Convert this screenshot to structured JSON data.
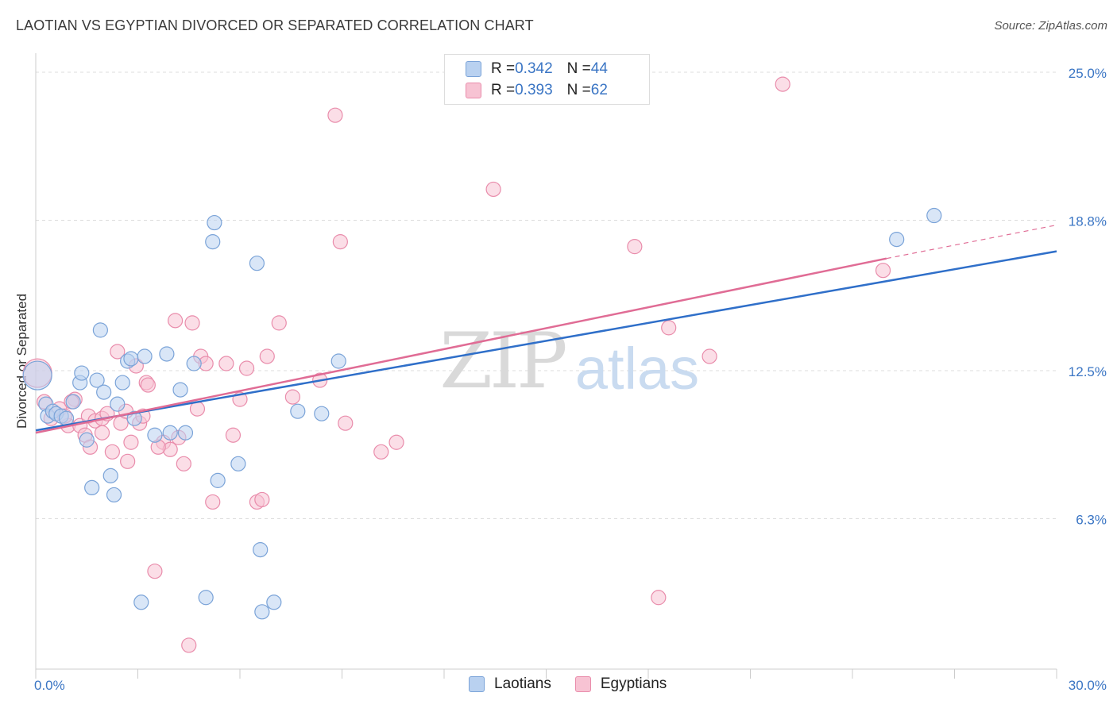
{
  "title": "LAOTIAN VS EGYPTIAN DIVORCED OR SEPARATED CORRELATION CHART",
  "source": "Source: ZipAtlas.com",
  "watermark": {
    "zip": "ZIP",
    "atlas": "atlas"
  },
  "legend": {
    "rows": [
      {
        "r_label": "R = ",
        "r_value": "0.342",
        "n_label": "N = ",
        "n_value": "44"
      },
      {
        "r_label": "R = ",
        "r_value": "0.393",
        "n_label": "N = ",
        "n_value": "62"
      }
    ]
  },
  "bottom_legend": [
    "Laotians",
    "Egyptians"
  ],
  "colors": {
    "laotian_fill": "#b9d1f0",
    "laotian_stroke": "#7aa3d8",
    "laotian_line": "#2f6fc9",
    "egyptian_fill": "#f7c3d3",
    "egyptian_stroke": "#e98cab",
    "egyptian_line": "#e06c95",
    "tick_label": "#3a75c4",
    "grid": "#dddddd"
  },
  "chart_data": {
    "type": "scatter",
    "title": "LAOTIAN VS EGYPTIAN DIVORCED OR SEPARATED CORRELATION CHART",
    "xlabel": "",
    "ylabel": "Divorced or Separated",
    "xlim": [
      0,
      30
    ],
    "ylim": [
      0,
      25.8
    ],
    "x_tick_labels": [
      "0.0%",
      "30.0%"
    ],
    "y_ticks": [
      6.3,
      12.5,
      18.8,
      25.0
    ],
    "y_tick_labels": [
      "6.3%",
      "12.5%",
      "18.8%",
      "25.0%"
    ],
    "grid": true,
    "legend_position": "top-center",
    "series": [
      {
        "name": "Laotians",
        "r": 0.342,
        "n": 44,
        "trend": {
          "x": [
            0,
            30
          ],
          "y": [
            10.0,
            17.5
          ]
        },
        "points": [
          [
            0.05,
            12.3
          ],
          [
            0.3,
            11.1
          ],
          [
            0.35,
            10.6
          ],
          [
            0.5,
            10.8
          ],
          [
            0.6,
            10.7
          ],
          [
            0.75,
            10.6
          ],
          [
            0.9,
            10.5
          ],
          [
            1.1,
            11.2
          ],
          [
            1.3,
            12.0
          ],
          [
            1.35,
            12.4
          ],
          [
            1.5,
            9.6
          ],
          [
            1.65,
            7.6
          ],
          [
            1.8,
            12.1
          ],
          [
            1.9,
            14.2
          ],
          [
            2.0,
            11.6
          ],
          [
            2.2,
            8.1
          ],
          [
            2.3,
            7.3
          ],
          [
            2.4,
            11.1
          ],
          [
            2.55,
            12.0
          ],
          [
            2.7,
            12.9
          ],
          [
            2.8,
            13.0
          ],
          [
            2.9,
            10.5
          ],
          [
            3.1,
            2.8
          ],
          [
            3.2,
            13.1
          ],
          [
            3.5,
            9.8
          ],
          [
            3.85,
            13.2
          ],
          [
            3.95,
            9.9
          ],
          [
            4.25,
            11.7
          ],
          [
            4.4,
            9.9
          ],
          [
            4.65,
            12.8
          ],
          [
            5.0,
            3.0
          ],
          [
            5.2,
            17.9
          ],
          [
            5.25,
            18.7
          ],
          [
            5.35,
            7.9
          ],
          [
            5.95,
            8.6
          ],
          [
            6.5,
            17.0
          ],
          [
            6.6,
            5.0
          ],
          [
            6.65,
            2.4
          ],
          [
            7.0,
            2.8
          ],
          [
            7.7,
            10.8
          ],
          [
            8.4,
            10.7
          ],
          [
            8.9,
            12.9
          ],
          [
            25.3,
            18.0
          ],
          [
            26.4,
            19.0
          ]
        ]
      },
      {
        "name": "Egyptians",
        "r": 0.393,
        "n": 62,
        "trend": {
          "x": [
            0,
            25
          ],
          "y": [
            9.9,
            17.2
          ],
          "dashed_extension": {
            "x": [
              25,
              30
            ],
            "y": [
              17.2,
              18.6
            ]
          }
        },
        "points": [
          [
            0.05,
            12.4
          ],
          [
            0.25,
            11.2
          ],
          [
            0.45,
            10.5
          ],
          [
            0.7,
            10.9
          ],
          [
            0.95,
            10.2
          ],
          [
            1.15,
            11.3
          ],
          [
            1.3,
            10.2
          ],
          [
            1.45,
            9.8
          ],
          [
            1.55,
            10.6
          ],
          [
            1.6,
            9.3
          ],
          [
            1.75,
            10.4
          ],
          [
            1.95,
            10.5
          ],
          [
            2.1,
            10.7
          ],
          [
            2.25,
            9.1
          ],
          [
            2.4,
            13.3
          ],
          [
            2.5,
            10.3
          ],
          [
            2.65,
            10.8
          ],
          [
            2.7,
            8.7
          ],
          [
            2.8,
            9.5
          ],
          [
            2.95,
            12.7
          ],
          [
            3.05,
            10.3
          ],
          [
            3.15,
            10.6
          ],
          [
            3.25,
            12.0
          ],
          [
            3.3,
            11.9
          ],
          [
            3.5,
            4.1
          ],
          [
            3.75,
            9.5
          ],
          [
            3.95,
            9.2
          ],
          [
            4.1,
            14.6
          ],
          [
            4.2,
            9.7
          ],
          [
            4.35,
            8.6
          ],
          [
            4.5,
            1.0
          ],
          [
            4.6,
            14.5
          ],
          [
            4.75,
            10.9
          ],
          [
            4.85,
            13.1
          ],
          [
            5.0,
            12.8
          ],
          [
            5.2,
            7.0
          ],
          [
            5.6,
            12.8
          ],
          [
            5.8,
            9.8
          ],
          [
            6.0,
            11.3
          ],
          [
            6.2,
            12.6
          ],
          [
            6.5,
            7.0
          ],
          [
            6.65,
            7.1
          ],
          [
            6.8,
            13.1
          ],
          [
            7.15,
            14.5
          ],
          [
            7.55,
            11.4
          ],
          [
            8.35,
            12.1
          ],
          [
            8.8,
            23.2
          ],
          [
            8.95,
            17.9
          ],
          [
            9.1,
            10.3
          ],
          [
            10.15,
            9.1
          ],
          [
            10.6,
            9.5
          ],
          [
            13.45,
            20.1
          ],
          [
            17.6,
            17.7
          ],
          [
            18.3,
            3.0
          ],
          [
            18.6,
            14.3
          ],
          [
            19.8,
            13.1
          ],
          [
            21.95,
            24.5
          ],
          [
            24.9,
            16.7
          ],
          [
            1.05,
            11.2
          ],
          [
            0.85,
            10.6
          ],
          [
            1.95,
            9.9
          ],
          [
            3.6,
            9.3
          ]
        ]
      }
    ]
  }
}
